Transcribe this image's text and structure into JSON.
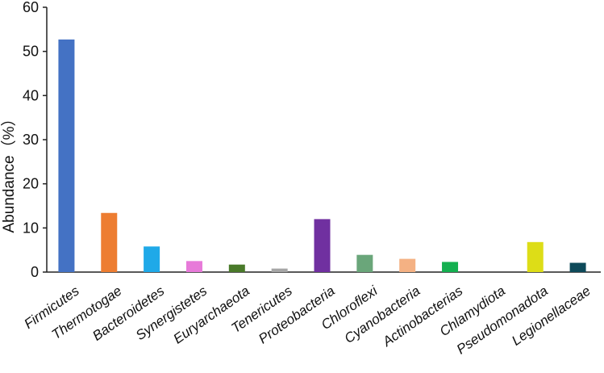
{
  "chart_data": {
    "type": "bar",
    "title": "",
    "xlabel": "",
    "ylabel": "Abundance（%）",
    "ylim": [
      0,
      60
    ],
    "yticks": [
      0,
      10,
      20,
      30,
      40,
      50,
      60
    ],
    "grid": false,
    "legend": "none",
    "categories": [
      "Firmicutes",
      "Thermotogae",
      "Bacteroidetes",
      "Synergistetes",
      "Euryarchaeota",
      "Tenericutes",
      "Proteobacteria",
      "Chloroflexi",
      "Cyanobacteria",
      "Actinobacterias",
      "Chlamydiota",
      "Pseudomonadota",
      "Legionellaceae"
    ],
    "values": [
      52.7,
      13.4,
      5.8,
      2.5,
      1.7,
      0.8,
      12.0,
      3.9,
      3.0,
      2.3,
      0.0,
      6.8,
      2.1
    ],
    "colors": [
      "#4472C4",
      "#ED7D31",
      "#1FA9E8",
      "#E77AD9",
      "#4A7A2A",
      "#A6A6A6",
      "#7030A0",
      "#6AA67A",
      "#F4B183",
      "#14B050",
      "#C9C9C9",
      "#DDDD17",
      "#0E4A5A"
    ]
  }
}
